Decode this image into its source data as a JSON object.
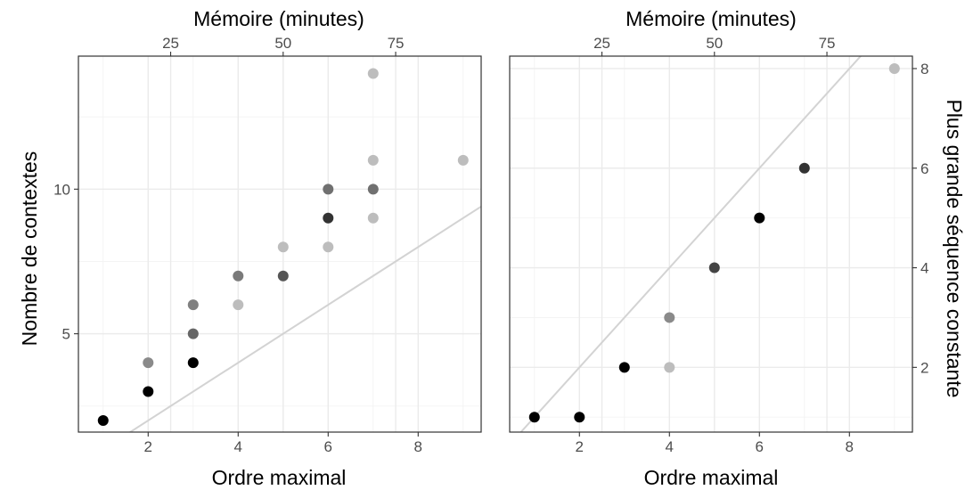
{
  "chart_data": [
    {
      "type": "scatter",
      "xlabel": "Ordre maximal",
      "x2label": "Mémoire (minutes)",
      "ylabel": "Nombre de contextes",
      "xlim": [
        0.45,
        9.4
      ],
      "ylim": [
        1.6,
        14.6
      ],
      "x_ticks": [
        2,
        4,
        6,
        8
      ],
      "x2_ticks": [
        25,
        50,
        75
      ],
      "y_ticks": [
        5,
        10
      ],
      "grid": true,
      "reference_line": {
        "slope": 1,
        "intercept": 0
      },
      "points": [
        {
          "x": 1,
          "y": 2,
          "color": "#000000"
        },
        {
          "x": 2,
          "y": 3,
          "color": "#000000"
        },
        {
          "x": 2,
          "y": 4,
          "color": "#8a8a8a"
        },
        {
          "x": 3,
          "y": 4,
          "color": "#000000"
        },
        {
          "x": 3,
          "y": 5,
          "color": "#666666"
        },
        {
          "x": 3,
          "y": 6,
          "color": "#808080"
        },
        {
          "x": 4,
          "y": 6,
          "color": "#bdbdbd"
        },
        {
          "x": 4,
          "y": 7,
          "color": "#7a7a7a"
        },
        {
          "x": 5,
          "y": 7,
          "color": "#555555"
        },
        {
          "x": 5,
          "y": 8,
          "color": "#bdbdbd"
        },
        {
          "x": 6,
          "y": 8,
          "color": "#bdbdbd"
        },
        {
          "x": 6,
          "y": 9,
          "color": "#333333"
        },
        {
          "x": 6,
          "y": 10,
          "color": "#707070"
        },
        {
          "x": 7,
          "y": 9,
          "color": "#bdbdbd"
        },
        {
          "x": 7,
          "y": 10,
          "color": "#707070"
        },
        {
          "x": 7,
          "y": 11,
          "color": "#bdbdbd"
        },
        {
          "x": 7,
          "y": 14,
          "color": "#bdbdbd"
        },
        {
          "x": 9,
          "y": 11,
          "color": "#bdbdbd"
        }
      ]
    },
    {
      "type": "scatter",
      "xlabel": "Ordre maximal",
      "x2label": "Mémoire (minutes)",
      "ylabel": "Plus grande séquence constante",
      "xlim": [
        0.45,
        9.4
      ],
      "ylim": [
        0.7,
        8.25
      ],
      "x_ticks": [
        2,
        4,
        6,
        8
      ],
      "x2_ticks": [
        25,
        50,
        75
      ],
      "y_ticks": [
        2,
        4,
        6,
        8
      ],
      "grid": true,
      "reference_line": {
        "slope": 1,
        "intercept": 0
      },
      "points": [
        {
          "x": 1,
          "y": 1,
          "color": "#000000"
        },
        {
          "x": 2,
          "y": 1,
          "color": "#000000"
        },
        {
          "x": 3,
          "y": 2,
          "color": "#000000"
        },
        {
          "x": 4,
          "y": 2,
          "color": "#bdbdbd"
        },
        {
          "x": 4,
          "y": 3,
          "color": "#8a8a8a"
        },
        {
          "x": 5,
          "y": 4,
          "color": "#444444"
        },
        {
          "x": 6,
          "y": 5,
          "color": "#000000"
        },
        {
          "x": 7,
          "y": 6,
          "color": "#333333"
        },
        {
          "x": 9,
          "y": 8,
          "color": "#bdbdbd"
        }
      ]
    }
  ]
}
